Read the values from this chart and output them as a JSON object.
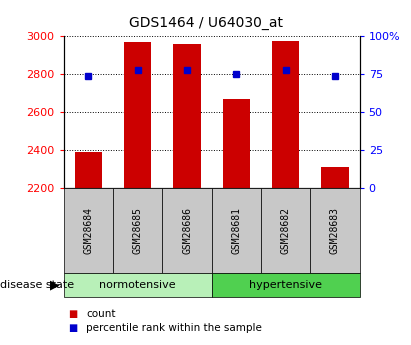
{
  "title": "GDS1464 / U64030_at",
  "samples": [
    "GSM28684",
    "GSM28685",
    "GSM28686",
    "GSM28681",
    "GSM28682",
    "GSM28683"
  ],
  "bar_heights": [
    2390,
    2970,
    2960,
    2670,
    2975,
    2310
  ],
  "bar_bottom": 2200,
  "percentile_values": [
    2790,
    2820,
    2820,
    2800,
    2820,
    2790
  ],
  "ylim_left": [
    2200,
    3000
  ],
  "ylim_right": [
    0,
    100
  ],
  "yticks_left": [
    2200,
    2400,
    2600,
    2800,
    3000
  ],
  "yticks_right": [
    0,
    25,
    50,
    75,
    100
  ],
  "ytick_labels_right": [
    "0",
    "25",
    "50",
    "75",
    "100%"
  ],
  "groups": [
    {
      "label": "normotensive",
      "start": 0,
      "end": 3
    },
    {
      "label": "hypertensive",
      "start": 3,
      "end": 6
    }
  ],
  "bar_color": "#cc0000",
  "marker_color": "#0000cc",
  "group_color_norm": "#b8f0b8",
  "group_color_hyp": "#50d050",
  "label_box_color": "#c8c8c8",
  "bar_width": 0.55,
  "legend_items": [
    {
      "label": "count",
      "color": "#cc0000"
    },
    {
      "label": "percentile rank within the sample",
      "color": "#0000cc"
    }
  ],
  "disease_state_label": "disease state",
  "title_fontsize": 10,
  "tick_fontsize": 8,
  "sample_fontsize": 7,
  "group_fontsize": 8,
  "legend_fontsize": 7.5
}
